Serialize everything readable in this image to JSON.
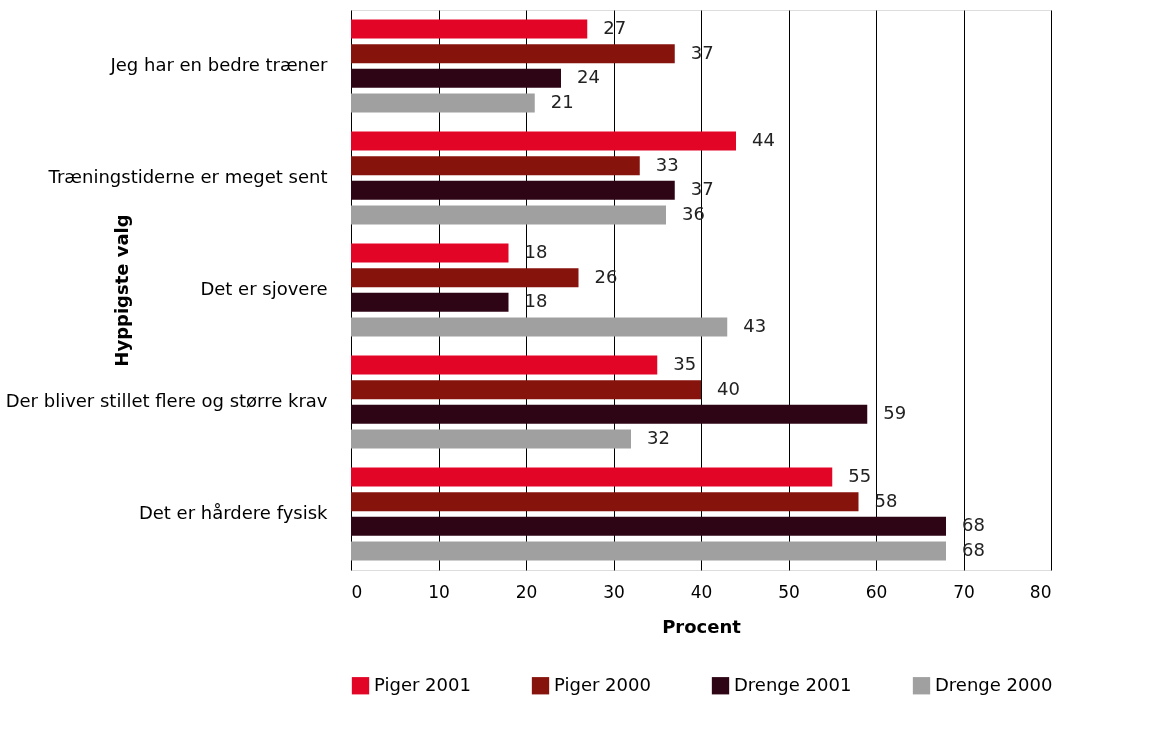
{
  "chart_data": {
    "type": "bar",
    "orientation": "horizontal",
    "xlabel": "Procent",
    "ylabel": "Hyppigste valg",
    "categories": [
      "Jeg har en bedre træner",
      "Træningstiderne er meget sent",
      "Det er sjovere",
      "Der bliver stillet flere og større krav",
      "Det er hårdere fysisk"
    ],
    "series": [
      {
        "name": "Piger 2001",
        "color": "#e30526",
        "values": [
          27,
          44,
          18,
          35,
          55
        ]
      },
      {
        "name": "Piger 2000",
        "color": "#87130d",
        "values": [
          37,
          33,
          26,
          40,
          58
        ]
      },
      {
        "name": "Drenge 2001",
        "color": "#2e0515",
        "values": [
          24,
          37,
          18,
          59,
          68
        ]
      },
      {
        "name": "Drenge 2000",
        "color": "#a0a0a0",
        "values": [
          21,
          36,
          43,
          32,
          68
        ]
      }
    ],
    "xlim": [
      0,
      80
    ],
    "xticks": [
      0,
      10,
      20,
      30,
      40,
      50,
      60,
      70,
      80
    ],
    "grid": "x",
    "legend": "bottom",
    "data_labels": true
  }
}
